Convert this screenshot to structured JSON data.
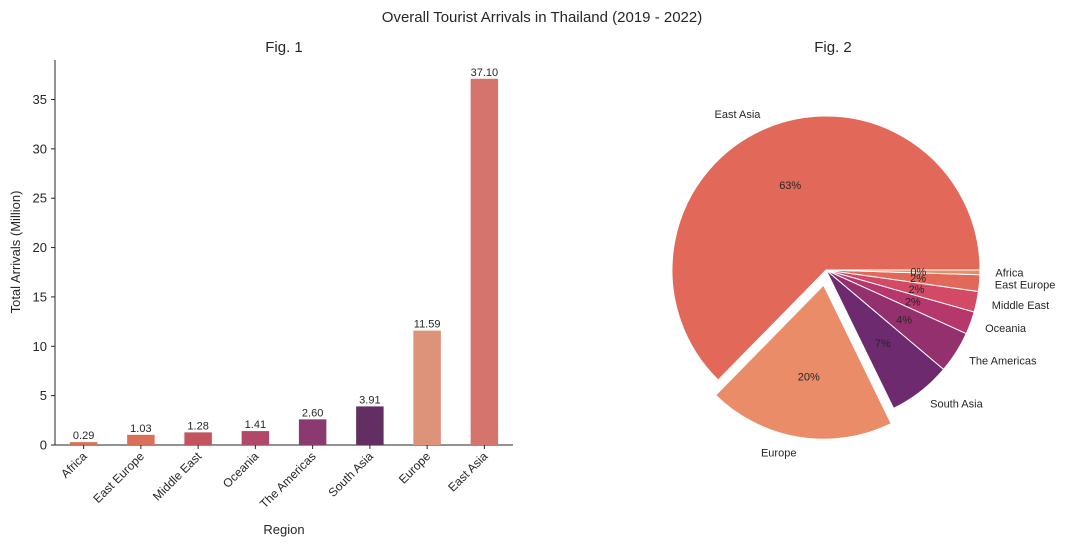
{
  "suptitle": "Overall Tourist Arrivals in Thailand (2019 - 2022)",
  "chart_data": [
    {
      "type": "bar",
      "title": "Fig. 1",
      "xlabel": "Region",
      "ylabel": "Total Arrivals (Million)",
      "ylim": [
        0,
        39
      ],
      "yticks": [
        0,
        5,
        10,
        15,
        20,
        25,
        30,
        35
      ],
      "categories": [
        "Africa",
        "East Europe",
        "Middle East",
        "Oceania",
        "The Americas",
        "South Asia",
        "Europe",
        "East Asia"
      ],
      "values": [
        0.29,
        1.03,
        1.28,
        1.41,
        2.6,
        3.91,
        11.59,
        37.1
      ],
      "data_labels": [
        "0.29",
        "1.03",
        "1.28",
        "1.41",
        "2.60",
        "3.91",
        "11.59",
        "37.10"
      ],
      "colors": [
        "#d9705a",
        "#d9705a",
        "#c2545f",
        "#b0486a",
        "#8a3a6e",
        "#632e62",
        "#dc937a",
        "#d4746c"
      ],
      "grid": false,
      "tick_rotation": 45
    },
    {
      "type": "pie",
      "title": "Fig. 2",
      "categories": [
        "East Asia",
        "Europe",
        "South Asia",
        "The Americas",
        "Oceania",
        "Middle East",
        "East Europe",
        "Africa"
      ],
      "percent_labels": [
        "63%",
        "20%",
        "7%",
        "4%",
        "2%",
        "2%",
        "2%",
        "0%"
      ],
      "values": [
        37.1,
        11.59,
        3.91,
        2.6,
        1.41,
        1.28,
        1.03,
        0.29
      ],
      "colors": [
        "#e2685a",
        "#eb8c69",
        "#6d2a6e",
        "#95306e",
        "#b5376c",
        "#d24a66",
        "#e2685a",
        "#eb8c69"
      ],
      "explode": [
        0,
        0.1,
        0,
        0,
        0,
        0,
        0,
        0
      ]
    }
  ]
}
